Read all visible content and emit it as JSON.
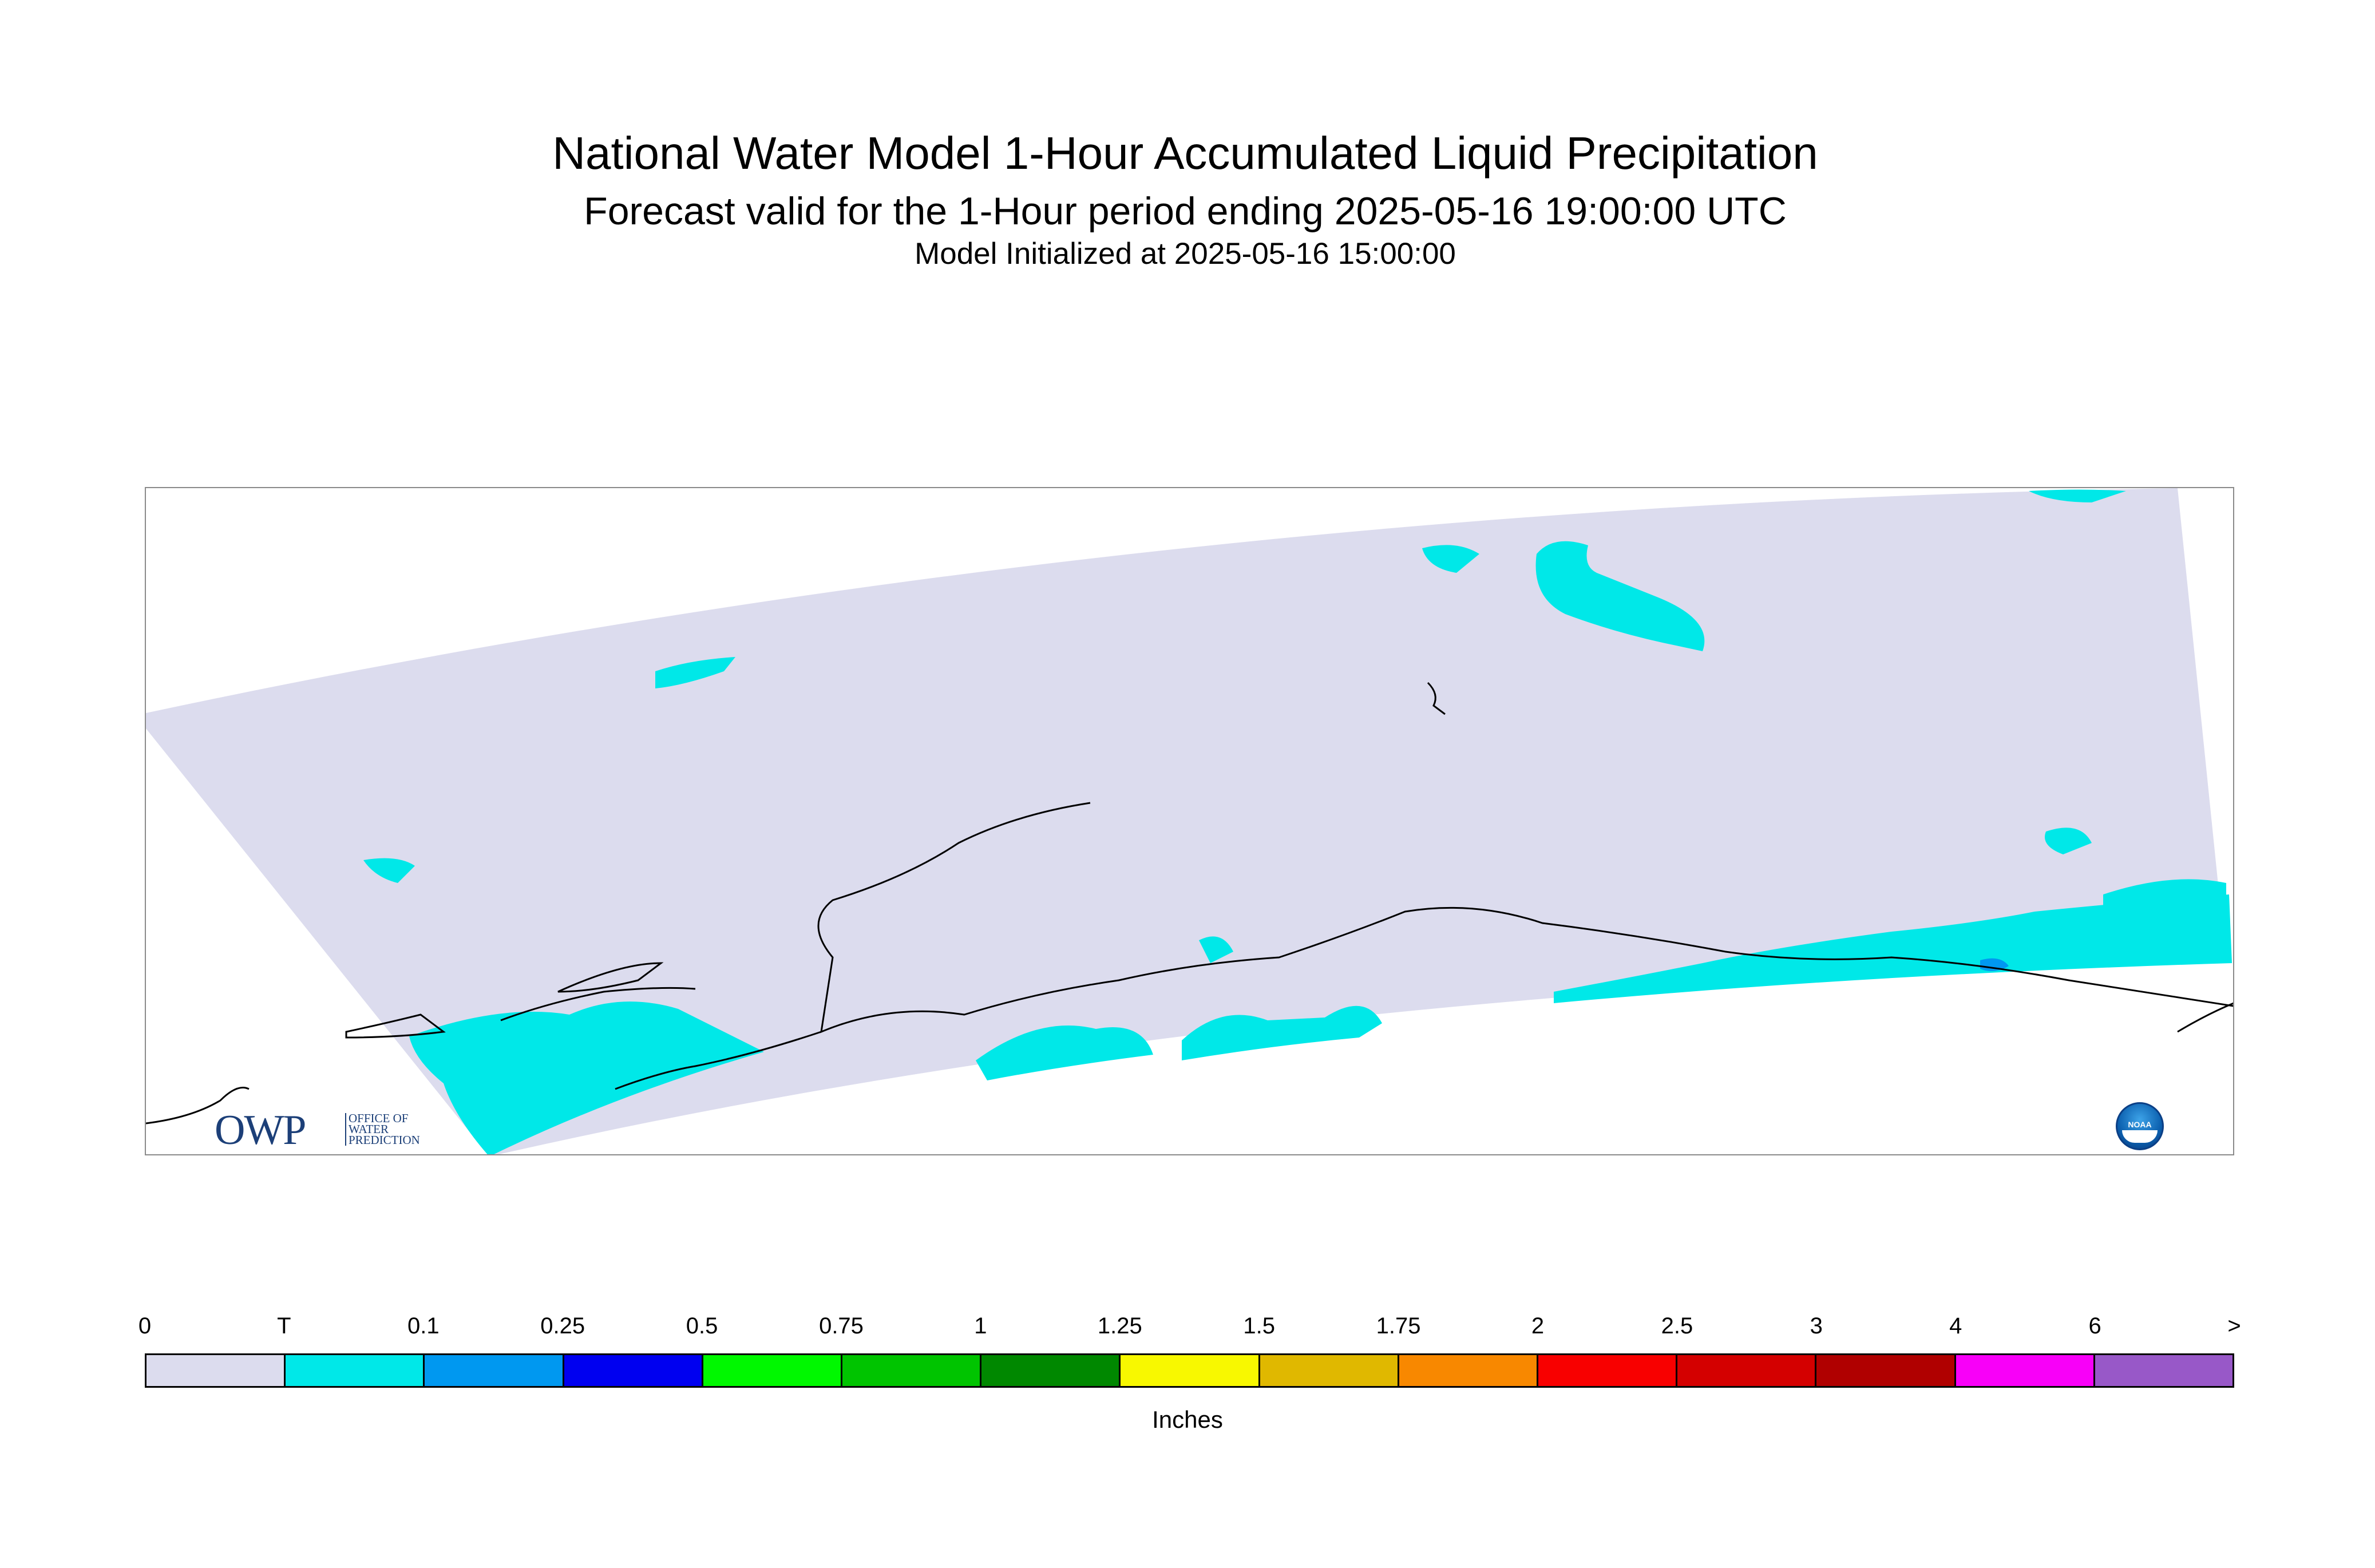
{
  "header": {
    "title": "National Water Model 1-Hour Accumulated Liquid Precipitation",
    "subtitle": "Forecast valid for the 1-Hour period ending 2025-05-16 19:00:00 UTC",
    "init": "Model Initialized at 2025-05-16 15:00:00"
  },
  "logos": {
    "owp_mark": "OWP",
    "owp_text_1": "OFFICE OF",
    "owp_text_2": "WATER",
    "owp_text_3": "PREDICTION",
    "noaa_text": "NOAA"
  },
  "legend": {
    "units": "Inches",
    "labels": [
      "0",
      "T",
      "0.1",
      "0.25",
      "0.5",
      "0.75",
      "1",
      "1.25",
      "1.5",
      "1.75",
      "2",
      "2.5",
      "3",
      "4",
      "6",
      ">"
    ],
    "colors": [
      "#dcdcee",
      "#00e8e8",
      "#0098f0",
      "#0000f0",
      "#00f800",
      "#00c400",
      "#008800",
      "#f8f800",
      "#e0b800",
      "#f88800",
      "#f80000",
      "#d40000",
      "#b00000",
      "#f800f8",
      "#9858c8"
    ]
  },
  "map_colors": {
    "domain": "#dcdcee",
    "trace": "#00e8e8",
    "light": "#0098f0",
    "coast": "#000000"
  }
}
